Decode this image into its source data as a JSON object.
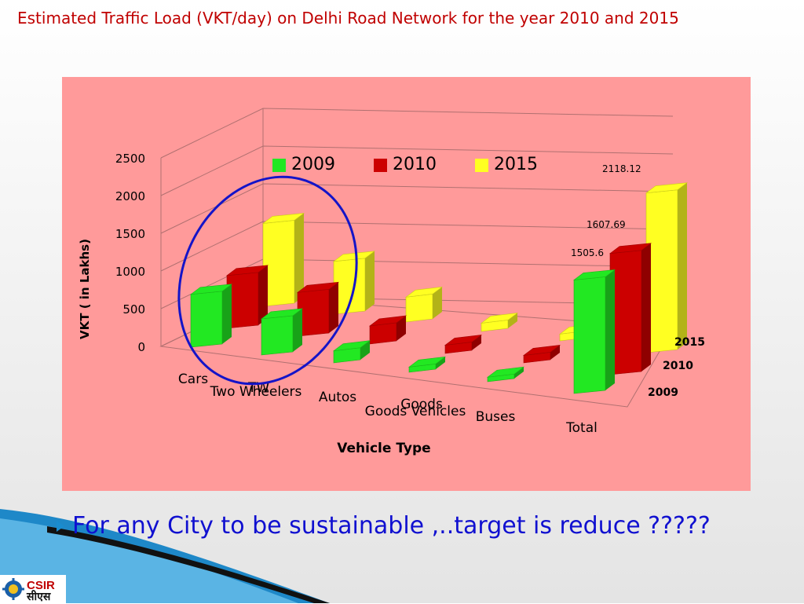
{
  "slide": {
    "title": "Estimated Traffic Load (VKT/day) on Delhi Road Network for the year 2010 and 2015",
    "bullet": "For any City to be sustainable ,..target is reduce ?????",
    "logo_text": "CSIR",
    "logo_sub_text": "सीएस"
  },
  "chart_data": {
    "type": "bar",
    "title": "",
    "xlabel": "Vehicle Type",
    "ylabel": "VKT ( in Lakhs)",
    "ylim": [
      0,
      2500
    ],
    "yticks": [
      "0",
      "500",
      "1000",
      "1500",
      "2000",
      "2500"
    ],
    "categories": [
      "Cars",
      "Two Wheelers",
      "Autos",
      "Goods Vehicles",
      "Buses",
      "Total"
    ],
    "extra_category_labels": [
      "TW",
      "Goods"
    ],
    "depth_labels": [
      "2015",
      "2010",
      "2009"
    ],
    "series": [
      {
        "name": "2009",
        "color": "#22e822",
        "values": [
          700,
          480,
          160,
          70,
          60,
          1505.6
        ]
      },
      {
        "name": "2010",
        "color": "#cc0000",
        "values": [
          700,
          580,
          240,
          110,
          100,
          1607.69
        ]
      },
      {
        "name": "2015",
        "color": "#ffff22",
        "values": [
          1100,
          700,
          330,
          110,
          90,
          2118.12
        ]
      }
    ],
    "data_labels": {
      "Total": [
        "1505.6",
        "1607.69",
        "2118.12"
      ]
    },
    "grid": true,
    "legend": "top",
    "annotation": "blue ellipse around Cars and Two Wheelers"
  }
}
